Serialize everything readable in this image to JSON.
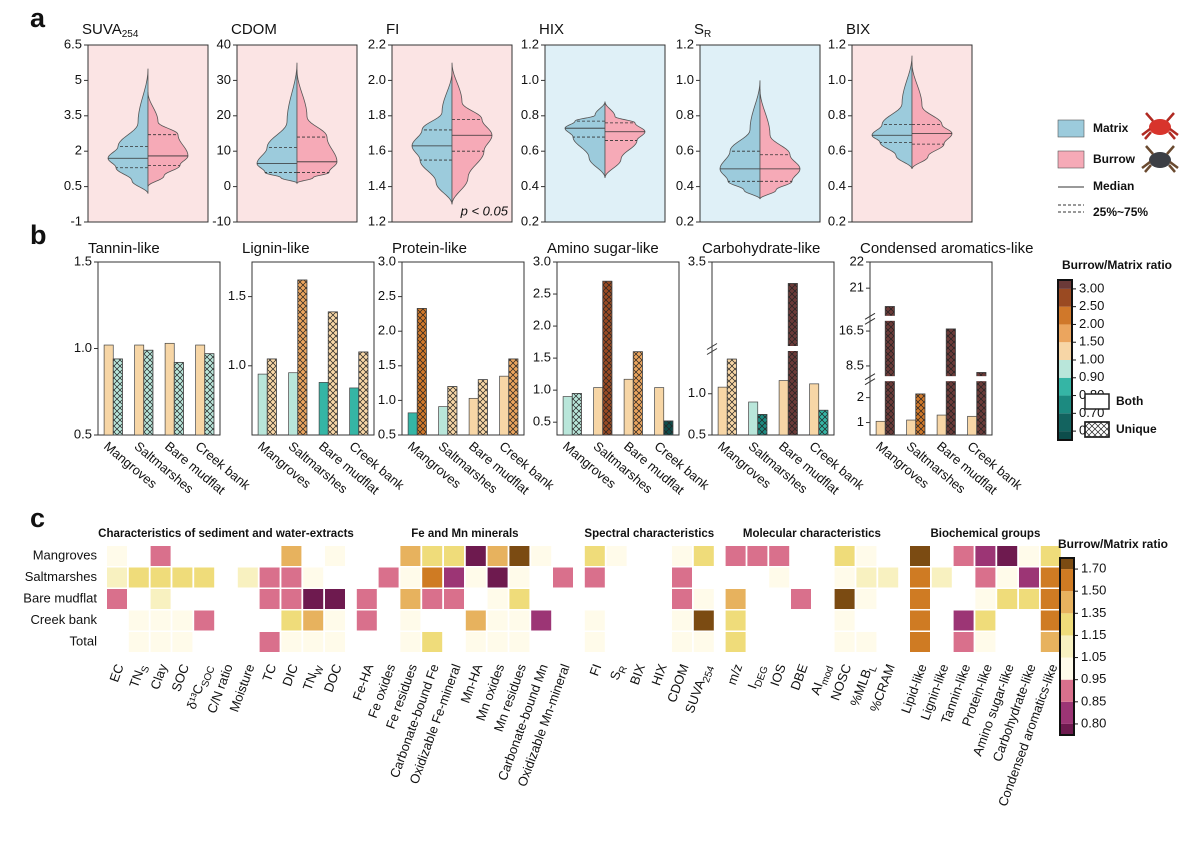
{
  "panel_labels": [
    "a",
    "b",
    "c"
  ],
  "violin_legend": {
    "series": [
      {
        "name": "Matrix",
        "color": "#9ccbdc"
      },
      {
        "name": "Burrow",
        "color": "#f6aab7"
      }
    ],
    "median": "Median",
    "quartiles": "25%~75%"
  },
  "bar_legend": [
    "Both",
    "Unique"
  ],
  "colorbar_b": {
    "title": "Burrow/Matrix ratio",
    "ticks": [
      {
        "value": 0.6,
        "label": "0.60"
      },
      {
        "value": 0.7,
        "label": "0.70"
      },
      {
        "value": 0.8,
        "label": "0.80"
      },
      {
        "value": 0.9,
        "label": "0.90"
      },
      {
        "value": 1,
        "label": "1.00"
      },
      {
        "value": 1.5,
        "label": "1.50"
      },
      {
        "value": 2,
        "label": "2.00"
      },
      {
        "value": 2.5,
        "label": "2.50"
      },
      {
        "value": 3,
        "label": "3.00"
      }
    ],
    "colors": [
      "#0d4d4b",
      "#13635f",
      "#1c8a80",
      "#35b5a5",
      "#b9e6da",
      "#f7d6a6",
      "#eba55e",
      "#d0782a",
      "#9a4a22",
      "#6b3a38"
    ]
  },
  "chart_data": [
    {
      "type": "violin",
      "title": "SUVA",
      "title_sub": "254",
      "background": "#fbe4e4",
      "ylim": [
        -1,
        6.5
      ],
      "yticks": [
        -1,
        0.5,
        2,
        3.5,
        5,
        6.5
      ],
      "series": [
        {
          "min": 0.2,
          "q1": 1.3,
          "median": 1.7,
          "q3": 2.2,
          "max": 5.5
        },
        {
          "min": 0.5,
          "q1": 1.4,
          "median": 1.8,
          "q3": 2.7,
          "max": 4.5
        }
      ]
    },
    {
      "type": "violin",
      "title": "CDOM",
      "background": "#fbe4e4",
      "ylim": [
        -10,
        40
      ],
      "yticks": [
        -10,
        0,
        10,
        20,
        30,
        40
      ],
      "series": [
        {
          "min": 1,
          "q1": 4,
          "median": 6.5,
          "q3": 11,
          "max": 35
        },
        {
          "min": 1,
          "q1": 4,
          "median": 7,
          "q3": 14,
          "max": 33
        }
      ]
    },
    {
      "type": "violin",
      "title": "FI",
      "background": "#fbe4e4",
      "annotation": "p < 0.05",
      "ylim": [
        1.2,
        2.2
      ],
      "yticks": [
        1.2,
        1.4,
        1.6,
        1.8,
        {
          "value": 2,
          "label": "2.0"
        },
        2.2
      ],
      "series": [
        {
          "min": 1.3,
          "q1": 1.55,
          "median": 1.63,
          "q3": 1.72,
          "max": 2.05
        },
        {
          "min": 1.3,
          "q1": 1.6,
          "median": 1.69,
          "q3": 1.78,
          "max": 2.1
        }
      ]
    },
    {
      "type": "violin",
      "title": "HIX",
      "background": "#dff0f7",
      "ylim": [
        0.2,
        1.2
      ],
      "yticks": [
        0.2,
        0.4,
        0.6,
        0.8,
        {
          "value": 1,
          "label": "1.0"
        },
        1.2
      ],
      "series": [
        {
          "min": 0.45,
          "q1": 0.68,
          "median": 0.73,
          "q3": 0.77,
          "max": 0.88
        },
        {
          "min": 0.45,
          "q1": 0.66,
          "median": 0.71,
          "q3": 0.76,
          "max": 0.88
        }
      ]
    },
    {
      "type": "violin",
      "title": "S",
      "title_sub": "R",
      "background": "#dff0f7",
      "ylim": [
        0.2,
        1.2
      ],
      "yticks": [
        0.2,
        0.4,
        0.6,
        0.8,
        {
          "value": 1,
          "label": "1.0"
        },
        1.2
      ],
      "series": [
        {
          "min": 0.33,
          "q1": 0.43,
          "median": 0.5,
          "q3": 0.6,
          "max": 1.0
        },
        {
          "min": 0.33,
          "q1": 0.43,
          "median": 0.5,
          "q3": 0.58,
          "max": 0.95
        }
      ]
    },
    {
      "type": "violin",
      "title": "BIX",
      "background": "#fbe4e4",
      "ylim": [
        0.2,
        1.2
      ],
      "yticks": [
        0.2,
        0.4,
        0.6,
        0.8,
        {
          "value": 1,
          "label": "1.0"
        },
        1.2
      ],
      "series": [
        {
          "min": 0.5,
          "q1": 0.65,
          "median": 0.69,
          "q3": 0.75,
          "max": 1.14
        },
        {
          "min": 0.5,
          "q1": 0.64,
          "median": 0.7,
          "q3": 0.75,
          "max": 1.1
        }
      ]
    },
    {
      "type": "bar",
      "title": "Tannin-like",
      "categories": [
        "Mangroves",
        "Saltmarshes",
        "Bare mudflat",
        "Creek bank"
      ],
      "ylim": [
        0.5,
        1.5
      ],
      "yticks": [
        0.5,
        {
          "value": 1,
          "label": "1.0"
        },
        1.5
      ],
      "series": [
        {
          "values": [
            1.02,
            1.02,
            1.03,
            1.02
          ]
        },
        {
          "values": [
            0.94,
            0.99,
            0.92,
            0.97
          ]
        }
      ]
    },
    {
      "type": "bar",
      "title": "Lignin-like",
      "categories": [
        "Mangroves",
        "Saltmarshes",
        "Bare mudflat",
        "Creek bank"
      ],
      "ylim": [
        0.5,
        1.75
      ],
      "yticks": [
        {
          "value": 1,
          "label": "1.0"
        },
        1.5
      ],
      "series": [
        {
          "values": [
            0.94,
            0.95,
            0.88,
            0.84
          ]
        },
        {
          "values": [
            1.05,
            1.62,
            1.39,
            1.1
          ]
        }
      ]
    },
    {
      "type": "bar",
      "title": "Protein-like",
      "categories": [
        "Mangroves",
        "Saltmarshes",
        "Bare mudflat",
        "Creek bank"
      ],
      "ylim": [
        0.5,
        3
      ],
      "yticks": [
        0.5,
        {
          "value": 1,
          "label": "1.0"
        },
        1.5,
        {
          "value": 2,
          "label": "2.0"
        },
        2.5,
        {
          "value": 3,
          "label": "3.0"
        }
      ],
      "series": [
        {
          "values": [
            0.82,
            0.91,
            1.03,
            1.35
          ]
        },
        {
          "values": [
            2.33,
            1.2,
            1.3,
            1.6
          ]
        }
      ]
    },
    {
      "type": "bar",
      "title": "Amino sugar-like",
      "categories": [
        "Mangroves",
        "Saltmarshes",
        "Bare mudflat",
        "Creek bank"
      ],
      "ylim": [
        0.3,
        3
      ],
      "yticks": [
        0.5,
        {
          "value": 1,
          "label": "1.0"
        },
        1.5,
        {
          "value": 2,
          "label": "2.0"
        },
        2.5,
        {
          "value": 3,
          "label": "3.0"
        }
      ],
      "series": [
        {
          "values": [
            0.9,
            1.04,
            1.17,
            1.04
          ]
        },
        {
          "values": [
            0.95,
            2.7,
            1.6,
            0.52
          ]
        }
      ]
    },
    {
      "type": "bar",
      "title": "Carbohydrate-like",
      "categories": [
        "Mangroves",
        "Saltmarshes",
        "Bare mudflat",
        "Creek bank"
      ],
      "ylim": [
        0.5,
        3.5
      ],
      "ybreaks": [
        [
          1.5,
          3
        ]
      ],
      "yticks": [
        0.5,
        {
          "value": 1,
          "label": "1.0"
        },
        3.5
      ],
      "series": [
        {
          "values": [
            1.08,
            0.9,
            1.16,
            1.12
          ]
        },
        {
          "values": [
            1.42,
            0.75,
            3.37,
            0.8
          ]
        }
      ]
    },
    {
      "type": "bar",
      "title": "Condensed aromatics-like",
      "categories": [
        "Mangroves",
        "Saltmarshes",
        "Bare mudflat",
        "Creek bank"
      ],
      "ylim": [
        0.5,
        22
      ],
      "ybreaks": [
        [
          2.6,
          6.5
        ],
        [
          18.5,
          20
        ]
      ],
      "yticks": [
        1,
        2,
        8.5,
        16.5,
        21,
        22
      ],
      "series": [
        {
          "values": [
            1.05,
            1.1,
            1.3,
            1.25
          ]
        },
        {
          "values": [
            20.3,
            2.15,
            17,
            7
          ]
        }
      ]
    },
    {
      "type": "heatmap",
      "rows": [
        "Mangroves",
        "Saltmarshes",
        "Bare mudflat",
        "Creek bank",
        "Total"
      ],
      "colorbar": {
        "title": "Burrow/Matrix ratio",
        "ticks": [
          {
            "value": 0.8,
            "label": "0.80"
          },
          0.85,
          0.95,
          1.05,
          1.15,
          1.35,
          {
            "value": 1.5,
            "label": "1.50"
          },
          {
            "value": 1.7,
            "label": "1.70"
          }
        ],
        "colors": [
          "#6e1a4f",
          "#9c3575",
          "#d9708c",
          "#fffbea",
          "#f8f1c0",
          "#efdc7a",
          "#e7b25e",
          "#cf7b23",
          "#7b4b12"
        ]
      },
      "groups": [
        {
          "name": "Characteristics of sediment and water-extracts",
          "columns": [
            "EC",
            "TN",
            "Clay",
            "SOC",
            "δ¹³C",
            "C/N ratio",
            "Moisture",
            "TC",
            "DIC",
            "TN",
            "DOC"
          ],
          "subscripts": [
            null,
            "S",
            null,
            null,
            "SOC",
            null,
            null,
            null,
            null,
            "W",
            null
          ],
          "label_colors": [
            "#3a8a3a",
            "#b0553a",
            "#b0553a",
            "#b0553a",
            "#b0553a",
            "#9a4a2a",
            "#9a4a2a",
            "#3f4f8f",
            "#3f4f8f",
            "#3f4f8f",
            "#3f4f8f"
          ],
          "values": [
            [
              1.0,
              null,
              0.88,
              null,
              null,
              null,
              null,
              null,
              1.42,
              null,
              1.0
            ],
            [
              1.1,
              1.2,
              1.3,
              1.2,
              1.2,
              null,
              1.1,
              0.88,
              0.88,
              1.0,
              null
            ],
            [
              0.88,
              null,
              1.1,
              null,
              null,
              null,
              null,
              0.88,
              0.88,
              0.78,
              0.75
            ],
            [
              null,
              1.0,
              1.0,
              1.0,
              0.88,
              null,
              null,
              null,
              1.2,
              1.35,
              1.0
            ],
            [
              null,
              1.0,
              1.0,
              1.0,
              null,
              null,
              null,
              0.88,
              1.0,
              1.0,
              1.0
            ]
          ]
        },
        {
          "name": "Fe and Mn minerals",
          "columns": [
            "Fe-HA",
            "Fe oxides",
            "Fe residues",
            "Carbonate-bound Fe",
            "Oxidizable Fe-mineral",
            "Mn-HA",
            "Mn oxides",
            "Mn residues",
            "Carbonate-bound Mn",
            "Oxidizable Mn-mineral"
          ],
          "subscripts": [
            null,
            null,
            null,
            null,
            null,
            null,
            null,
            null,
            null,
            null
          ],
          "label_colors": [
            "#8a9a4a",
            "#8a9a4a",
            "#8a9a4a",
            "#8a9a4a",
            "#8a9a4a",
            "#c78a4a",
            "#c78a4a",
            "#c78a4a",
            "#c78a4a",
            "#c78a4a"
          ],
          "values": [
            [
              null,
              null,
              1.4,
              1.2,
              1.3,
              0.78,
              1.4,
              1.75,
              1.0,
              null
            ],
            [
              null,
              0.88,
              1.0,
              1.6,
              0.82,
              1.0,
              0.78,
              1.0,
              null,
              0.88
            ],
            [
              0.88,
              null,
              1.4,
              0.88,
              0.88,
              null,
              1.0,
              1.2,
              null,
              null
            ],
            [
              0.88,
              null,
              1.0,
              null,
              null,
              1.4,
              1.0,
              1.0,
              0.8,
              null
            ],
            [
              null,
              null,
              1.0,
              1.2,
              null,
              1.0,
              1.0,
              1.0,
              null,
              null
            ]
          ]
        },
        {
          "name": "Spectral characteristics",
          "columns": [
            "FI",
            "S",
            "BIX",
            "HIX",
            "CDOM",
            "SUVA"
          ],
          "subscripts": [
            null,
            "R",
            null,
            null,
            null,
            "254"
          ],
          "label_colors": [
            "#d0604f",
            "#d0604f",
            "#d0604f",
            "#d0604f",
            "#d0604f",
            "#d0604f"
          ],
          "values": [
            [
              1.2,
              1.0,
              null,
              null,
              1.0,
              1.2
            ],
            [
              0.88,
              null,
              null,
              null,
              0.88,
              null
            ],
            [
              null,
              null,
              null,
              null,
              0.88,
              1.0
            ],
            [
              1.0,
              null,
              null,
              null,
              1.0,
              1.75
            ],
            [
              1.0,
              null,
              null,
              null,
              1.0,
              1.0
            ]
          ]
        },
        {
          "name": "Molecular characteristics",
          "columns": [
            "m/z",
            "I",
            "IOS",
            "DBE",
            "AI",
            "NOSC",
            "%MLB",
            "%CRAM"
          ],
          "subscripts": [
            null,
            "DEG",
            null,
            null,
            "mod",
            null,
            "L",
            null
          ],
          "label_colors": [
            "#6f7f85",
            "#6f7f85",
            "#6f7f85",
            "#6f7f85",
            "#6f7f85",
            "#6f7f85",
            "#6f7f85",
            "#6f7f85"
          ],
          "values": [
            [
              0.88,
              0.88,
              0.88,
              null,
              null,
              1.2,
              1.0,
              null
            ],
            [
              null,
              null,
              1.0,
              null,
              null,
              1.0,
              1.1,
              1.1
            ],
            [
              1.4,
              null,
              null,
              0.88,
              null,
              1.75,
              1.0,
              null
            ],
            [
              1.2,
              null,
              null,
              null,
              null,
              1.0,
              null,
              null
            ],
            [
              1.2,
              null,
              null,
              null,
              null,
              1.0,
              1.0,
              null
            ]
          ]
        },
        {
          "name": "Biochemical groups",
          "columns": [
            "Lipid-like",
            "Lignin-like",
            "Tannin-like",
            "Protein-like",
            "Amino sugar-like",
            "Carbohydrate-like",
            "Condensed aromatics-like"
          ],
          "subscripts": [
            null,
            null,
            null,
            null,
            null,
            null,
            null
          ],
          "label_colors": [
            "#a0207a",
            "#a0207a",
            "#a0207a",
            "#a0207a",
            "#a0207a",
            "#a0207a",
            "#a0207a"
          ],
          "values": [
            [
              1.75,
              null,
              0.88,
              0.82,
              0.78,
              1.0,
              1.3
            ],
            [
              1.6,
              1.1,
              null,
              0.88,
              1.0,
              0.82,
              1.6
            ],
            [
              1.6,
              null,
              null,
              1.0,
              1.2,
              1.2,
              1.6
            ],
            [
              1.6,
              null,
              0.8,
              1.2,
              null,
              null,
              1.6
            ],
            [
              1.6,
              null,
              0.88,
              1.0,
              null,
              null,
              1.4
            ]
          ]
        }
      ]
    }
  ]
}
